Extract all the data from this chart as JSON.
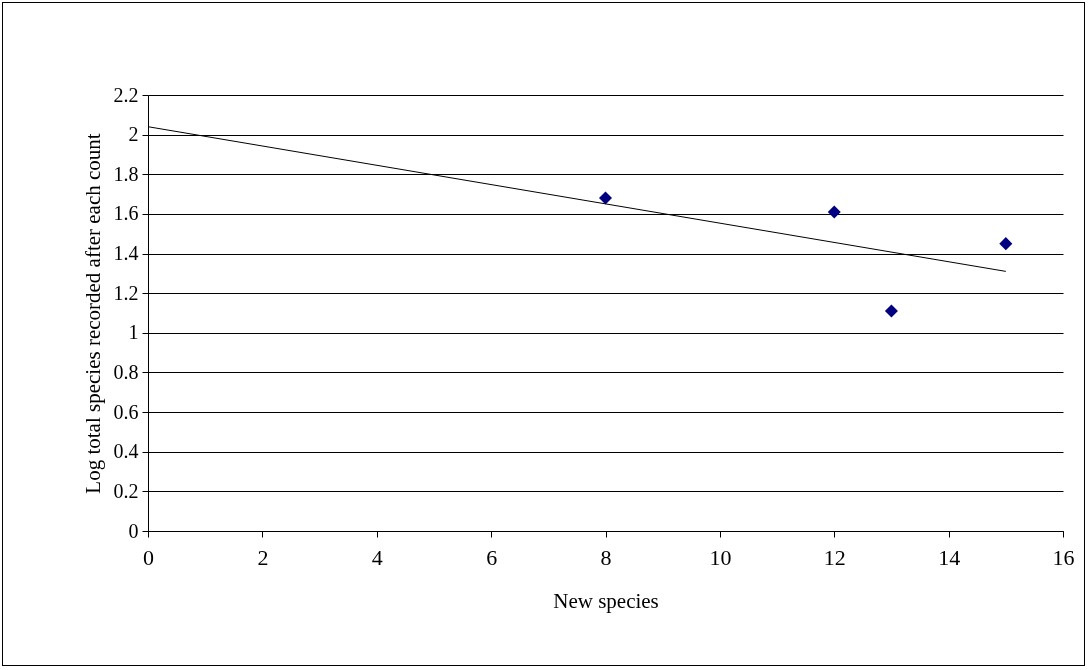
{
  "chart_data": {
    "type": "scatter",
    "xlabel": "New species",
    "ylabel": "Log total species recorded after each count",
    "xlim": [
      0,
      16
    ],
    "xticks": [
      0,
      2,
      4,
      6,
      8,
      10,
      12,
      14,
      16
    ],
    "ylim": [
      0,
      2.2
    ],
    "yticks": [
      0,
      0.2,
      0.4,
      0.6,
      0.8,
      1,
      1.2,
      1.4,
      1.6,
      1.8,
      2,
      2.2
    ],
    "grid": "y",
    "series": [
      {
        "color": "#000080",
        "marker": "diamond",
        "x": [
          8,
          12,
          13,
          15
        ],
        "values": [
          1.68,
          1.61,
          1.11,
          1.45
        ]
      },
      {
        "type": "line",
        "color": "#000000",
        "marker": "none",
        "x": [
          0,
          15
        ],
        "values": [
          2.04,
          1.31
        ]
      }
    ]
  }
}
